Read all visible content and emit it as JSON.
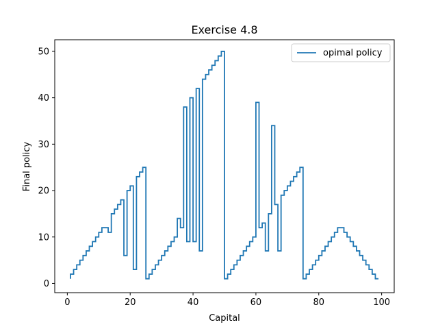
{
  "chart_data": {
    "type": "line",
    "drawstyle": "steps",
    "title": "Exercise 4.8",
    "xlabel": "Capital",
    "ylabel": "Final policy",
    "xlim": [
      -4,
      104
    ],
    "ylim": [
      -2,
      52.5
    ],
    "xticks": [
      0,
      20,
      40,
      60,
      80,
      100
    ],
    "yticks": [
      0,
      10,
      20,
      30,
      40,
      50
    ],
    "grid": false,
    "legend_position": "top-right",
    "series": [
      {
        "name": "opimal policy",
        "color": "#1f77b4",
        "x": [
          1,
          2,
          3,
          4,
          5,
          6,
          7,
          8,
          9,
          10,
          11,
          12,
          13,
          14,
          15,
          16,
          17,
          18,
          19,
          20,
          21,
          22,
          23,
          24,
          25,
          26,
          27,
          28,
          29,
          30,
          31,
          32,
          33,
          34,
          35,
          36,
          37,
          38,
          39,
          40,
          41,
          42,
          43,
          44,
          45,
          46,
          47,
          48,
          49,
          50,
          51,
          52,
          53,
          54,
          55,
          56,
          57,
          58,
          59,
          60,
          61,
          62,
          63,
          64,
          65,
          66,
          67,
          68,
          69,
          70,
          71,
          72,
          73,
          74,
          75,
          76,
          77,
          78,
          79,
          80,
          81,
          82,
          83,
          84,
          85,
          86,
          87,
          88,
          89,
          90,
          91,
          92,
          93,
          94,
          95,
          96,
          97,
          98,
          99
        ],
        "values": [
          1,
          2,
          3,
          4,
          5,
          6,
          7,
          8,
          9,
          10,
          11,
          12,
          12,
          11,
          15,
          16,
          17,
          18,
          6,
          20,
          21,
          3,
          23,
          24,
          25,
          1,
          2,
          3,
          4,
          5,
          6,
          7,
          8,
          9,
          10,
          14,
          12,
          38,
          9,
          40,
          9,
          42,
          7,
          44,
          45,
          46,
          47,
          48,
          49,
          50,
          1,
          2,
          3,
          4,
          5,
          6,
          7,
          8,
          9,
          10,
          39,
          12,
          13,
          7,
          15,
          34,
          17,
          7,
          19,
          20,
          21,
          22,
          23,
          24,
          25,
          1,
          2,
          3,
          4,
          5,
          6,
          7,
          8,
          9,
          10,
          11,
          12,
          12,
          11,
          10,
          9,
          8,
          7,
          6,
          5,
          4,
          3,
          2,
          1
        ]
      }
    ]
  }
}
